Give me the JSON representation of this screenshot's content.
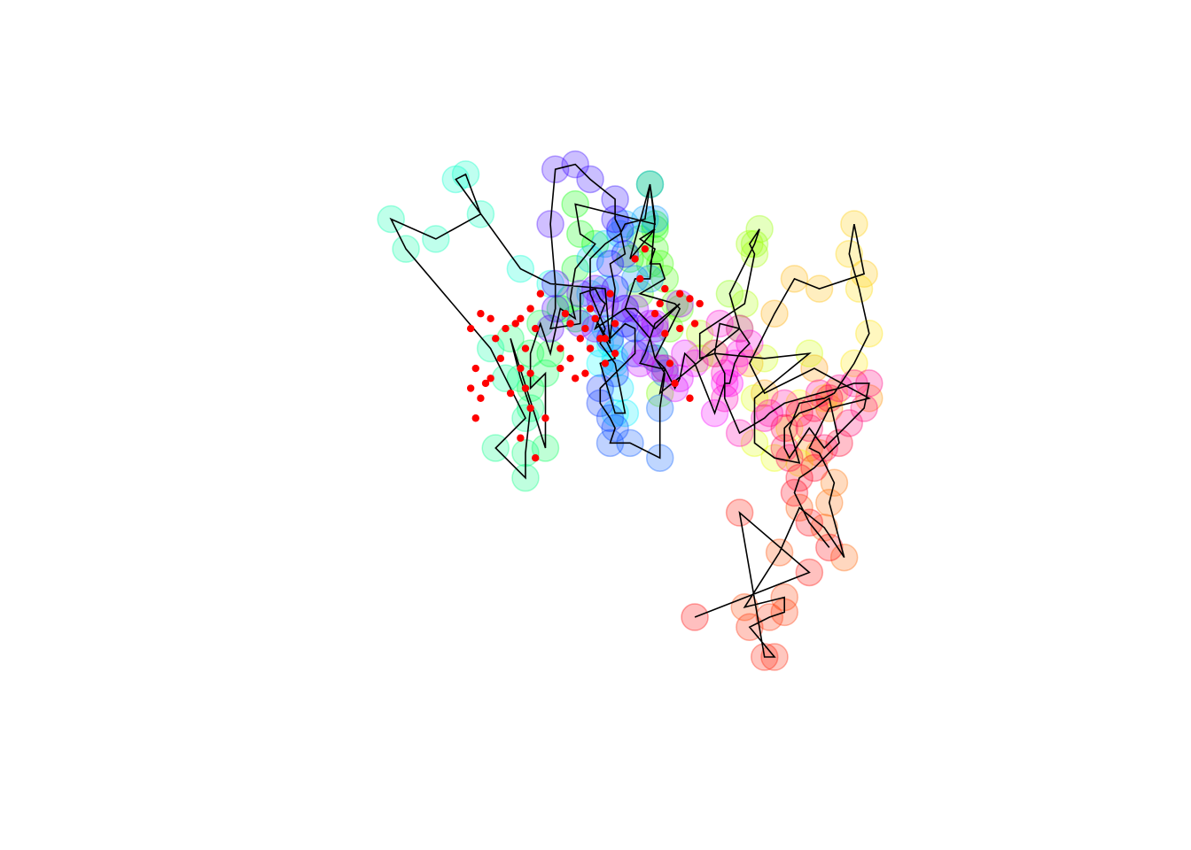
{
  "chart_data": {
    "type": "scatter",
    "title": "",
    "xlabel": "",
    "ylabel": "",
    "axes_visible": false,
    "grid": false,
    "legend": "none",
    "xlim": [
      0,
      1
    ],
    "ylim": [
      0,
      1
    ],
    "marker_style": "translucent rainbow circles, colored by position along the path",
    "path_color": "#000000",
    "highlight_color": "#ff0000",
    "path": [
      [
        0.63,
        0.08
      ],
      [
        0.86,
        0.17
      ],
      [
        0.72,
        0.29
      ],
      [
        0.77,
        0.0
      ],
      [
        0.79,
        0.0
      ],
      [
        0.74,
        0.06
      ],
      [
        0.78,
        0.08
      ],
      [
        0.81,
        0.09
      ],
      [
        0.81,
        0.12
      ],
      [
        0.73,
        0.1
      ],
      [
        0.8,
        0.21
      ],
      [
        0.84,
        0.3
      ],
      [
        0.89,
        0.26
      ],
      [
        0.93,
        0.2
      ],
      [
        0.9,
        0.31
      ],
      [
        0.91,
        0.35
      ],
      [
        0.88,
        0.41
      ],
      [
        0.86,
        0.42
      ],
      [
        0.9,
        0.5
      ],
      [
        0.98,
        0.52
      ],
      [
        0.87,
        0.58
      ],
      [
        0.77,
        0.53
      ],
      [
        0.74,
        0.59
      ],
      [
        0.79,
        0.69
      ],
      [
        0.83,
        0.76
      ],
      [
        0.88,
        0.74
      ],
      [
        0.97,
        0.77
      ],
      [
        0.95,
        0.87
      ],
      [
        0.94,
        0.81
      ],
      [
        0.96,
        0.74
      ],
      [
        0.98,
        0.65
      ],
      [
        0.95,
        0.59
      ],
      [
        0.91,
        0.53
      ],
      [
        0.89,
        0.52
      ],
      [
        0.84,
        0.51
      ],
      [
        0.82,
        0.46
      ],
      [
        0.84,
        0.39
      ],
      [
        0.79,
        0.4
      ],
      [
        0.75,
        0.43
      ],
      [
        0.75,
        0.52
      ],
      [
        0.86,
        0.61
      ],
      [
        0.77,
        0.6
      ],
      [
        0.67,
        0.61
      ],
      [
        0.64,
        0.6
      ],
      [
        0.64,
        0.65
      ],
      [
        0.73,
        0.71
      ],
      [
        0.75,
        0.81
      ],
      [
        0.74,
        0.83
      ],
      [
        0.76,
        0.86
      ],
      [
        0.75,
        0.83
      ],
      [
        0.7,
        0.73
      ],
      [
        0.72,
        0.66
      ],
      [
        0.56,
        0.53
      ],
      [
        0.57,
        0.58
      ],
      [
        0.55,
        0.6
      ],
      [
        0.58,
        0.66
      ],
      [
        0.6,
        0.7
      ],
      [
        0.59,
        0.71
      ],
      [
        0.52,
        0.73
      ],
      [
        0.57,
        0.76
      ],
      [
        0.56,
        0.79
      ],
      [
        0.54,
        0.79
      ],
      [
        0.55,
        0.82
      ],
      [
        0.52,
        0.84
      ],
      [
        0.55,
        0.86
      ],
      [
        0.5,
        0.8
      ],
      [
        0.54,
        0.95
      ],
      [
        0.55,
        0.87
      ],
      [
        0.39,
        0.91
      ],
      [
        0.4,
        0.85
      ],
      [
        0.43,
        0.83
      ],
      [
        0.39,
        0.78
      ],
      [
        0.38,
        0.72
      ],
      [
        0.39,
        0.68
      ],
      [
        0.36,
        0.7
      ],
      [
        0.34,
        0.61
      ],
      [
        0.32,
        0.67
      ],
      [
        0.3,
        0.61
      ],
      [
        0.3,
        0.54
      ],
      [
        0.33,
        0.57
      ],
      [
        0.33,
        0.42
      ],
      [
        0.26,
        0.64
      ],
      [
        0.28,
        0.56
      ],
      [
        0.3,
        0.5
      ],
      [
        0.29,
        0.41
      ],
      [
        0.29,
        0.36
      ],
      [
        0.23,
        0.42
      ],
      [
        0.29,
        0.48
      ],
      [
        0.25,
        0.56
      ],
      [
        0.22,
        0.62
      ],
      [
        0.05,
        0.82
      ],
      [
        0.02,
        0.88
      ],
      [
        0.11,
        0.84
      ],
      [
        0.2,
        0.89
      ],
      [
        0.17,
        0.97
      ],
      [
        0.15,
        0.96
      ],
      [
        0.28,
        0.78
      ],
      [
        0.34,
        0.75
      ],
      [
        0.45,
        0.74
      ],
      [
        0.46,
        0.63
      ],
      [
        0.43,
        0.68
      ],
      [
        0.47,
        0.6
      ],
      [
        0.44,
        0.59
      ],
      [
        0.47,
        0.49
      ],
      [
        0.49,
        0.49
      ],
      [
        0.48,
        0.54
      ],
      [
        0.47,
        0.59
      ],
      [
        0.44,
        0.63
      ],
      [
        0.45,
        0.66
      ],
      [
        0.42,
        0.73
      ],
      [
        0.42,
        0.8
      ],
      [
        0.45,
        0.83
      ],
      [
        0.48,
        0.85
      ],
      [
        0.49,
        0.87
      ],
      [
        0.53,
        0.88
      ],
      [
        0.54,
        0.95
      ],
      [
        0.55,
        0.88
      ],
      [
        0.54,
        0.76
      ],
      [
        0.51,
        0.76
      ],
      [
        0.49,
        0.7
      ],
      [
        0.54,
        0.64
      ],
      [
        0.55,
        0.6
      ],
      [
        0.57,
        0.57
      ],
      [
        0.56,
        0.5
      ],
      [
        0.56,
        0.4
      ],
      [
        0.5,
        0.43
      ],
      [
        0.46,
        0.43
      ],
      [
        0.47,
        0.46
      ],
      [
        0.46,
        0.48
      ],
      [
        0.44,
        0.51
      ],
      [
        0.44,
        0.54
      ],
      [
        0.47,
        0.57
      ],
      [
        0.51,
        0.61
      ],
      [
        0.51,
        0.66
      ],
      [
        0.49,
        0.67
      ],
      [
        0.46,
        0.64
      ],
      [
        0.47,
        0.74
      ],
      [
        0.46,
        0.79
      ],
      [
        0.49,
        0.81
      ],
      [
        0.48,
        0.86
      ],
      [
        0.47,
        0.88
      ],
      [
        0.47,
        0.92
      ],
      [
        0.42,
        0.96
      ],
      [
        0.39,
        0.99
      ],
      [
        0.35,
        0.98
      ],
      [
        0.34,
        0.87
      ],
      [
        0.35,
        0.75
      ],
      [
        0.35,
        0.7
      ],
      [
        0.34,
        0.66
      ],
      [
        0.4,
        0.67
      ],
      [
        0.4,
        0.73
      ],
      [
        0.43,
        0.74
      ],
      [
        0.44,
        0.72
      ],
      [
        0.45,
        0.71
      ],
      [
        0.43,
        0.66
      ],
      [
        0.49,
        0.7
      ],
      [
        0.51,
        0.7
      ],
      [
        0.54,
        0.67
      ],
      [
        0.55,
        0.66
      ],
      [
        0.6,
        0.71
      ],
      [
        0.55,
        0.67
      ],
      [
        0.53,
        0.61
      ],
      [
        0.52,
        0.59
      ],
      [
        0.56,
        0.58
      ],
      [
        0.57,
        0.58
      ],
      [
        0.59,
        0.54
      ],
      [
        0.6,
        0.56
      ],
      [
        0.61,
        0.61
      ],
      [
        0.63,
        0.59
      ],
      [
        0.67,
        0.49
      ],
      [
        0.69,
        0.55
      ],
      [
        0.7,
        0.55
      ],
      [
        0.71,
        0.59
      ],
      [
        0.72,
        0.61
      ],
      [
        0.74,
        0.63
      ],
      [
        0.72,
        0.66
      ],
      [
        0.68,
        0.67
      ],
      [
        0.67,
        0.61
      ],
      [
        0.69,
        0.57
      ],
      [
        0.69,
        0.52
      ],
      [
        0.72,
        0.45
      ],
      [
        0.77,
        0.48
      ],
      [
        0.78,
        0.49
      ],
      [
        0.81,
        0.51
      ],
      [
        0.88,
        0.53
      ],
      [
        0.92,
        0.54
      ],
      [
        0.95,
        0.55
      ],
      [
        0.98,
        0.55
      ],
      [
        0.97,
        0.5
      ],
      [
        0.94,
        0.47
      ],
      [
        0.89,
        0.42
      ],
      [
        0.86,
        0.46
      ],
      [
        0.82,
        0.4
      ],
      [
        0.81,
        0.42
      ],
      [
        0.81,
        0.46
      ],
      [
        0.84,
        0.49
      ],
      [
        0.87,
        0.5
      ],
      [
        0.9,
        0.52
      ],
      [
        0.92,
        0.43
      ],
      [
        0.87,
        0.38
      ],
      [
        0.84,
        0.36
      ],
      [
        0.83,
        0.33
      ],
      [
        0.86,
        0.27
      ],
      [
        0.9,
        0.22
      ]
    ],
    "highlighted_points": [
      [
        0.51,
        0.8
      ],
      [
        0.53,
        0.82
      ],
      [
        0.52,
        0.76
      ],
      [
        0.57,
        0.74
      ],
      [
        0.56,
        0.71
      ],
      [
        0.55,
        0.69
      ],
      [
        0.6,
        0.73
      ],
      [
        0.62,
        0.72
      ],
      [
        0.64,
        0.71
      ],
      [
        0.57,
        0.65
      ],
      [
        0.6,
        0.66
      ],
      [
        0.63,
        0.67
      ],
      [
        0.58,
        0.59
      ],
      [
        0.59,
        0.55
      ],
      [
        0.62,
        0.52
      ],
      [
        0.46,
        0.73
      ],
      [
        0.47,
        0.67
      ],
      [
        0.43,
        0.68
      ],
      [
        0.41,
        0.66
      ],
      [
        0.45,
        0.64
      ],
      [
        0.47,
        0.61
      ],
      [
        0.42,
        0.62
      ],
      [
        0.4,
        0.64
      ],
      [
        0.42,
        0.7
      ],
      [
        0.37,
        0.69
      ],
      [
        0.38,
        0.67
      ],
      [
        0.36,
        0.62
      ],
      [
        0.36,
        0.58
      ],
      [
        0.38,
        0.6
      ],
      [
        0.39,
        0.56
      ],
      [
        0.41,
        0.57
      ],
      [
        0.42,
        0.62
      ],
      [
        0.44,
        0.64
      ],
      [
        0.45,
        0.59
      ],
      [
        0.32,
        0.73
      ],
      [
        0.3,
        0.7
      ],
      [
        0.28,
        0.68
      ],
      [
        0.31,
        0.66
      ],
      [
        0.29,
        0.62
      ],
      [
        0.3,
        0.57
      ],
      [
        0.28,
        0.58
      ],
      [
        0.26,
        0.53
      ],
      [
        0.29,
        0.54
      ],
      [
        0.33,
        0.48
      ],
      [
        0.3,
        0.5
      ],
      [
        0.28,
        0.44
      ],
      [
        0.31,
        0.4
      ],
      [
        0.25,
        0.66
      ],
      [
        0.27,
        0.67
      ],
      [
        0.23,
        0.64
      ],
      [
        0.24,
        0.6
      ],
      [
        0.22,
        0.68
      ],
      [
        0.2,
        0.69
      ],
      [
        0.18,
        0.66
      ],
      [
        0.19,
        0.48
      ],
      [
        0.2,
        0.52
      ],
      [
        0.21,
        0.55
      ],
      [
        0.22,
        0.56
      ],
      [
        0.19,
        0.58
      ],
      [
        0.18,
        0.54
      ]
    ]
  }
}
